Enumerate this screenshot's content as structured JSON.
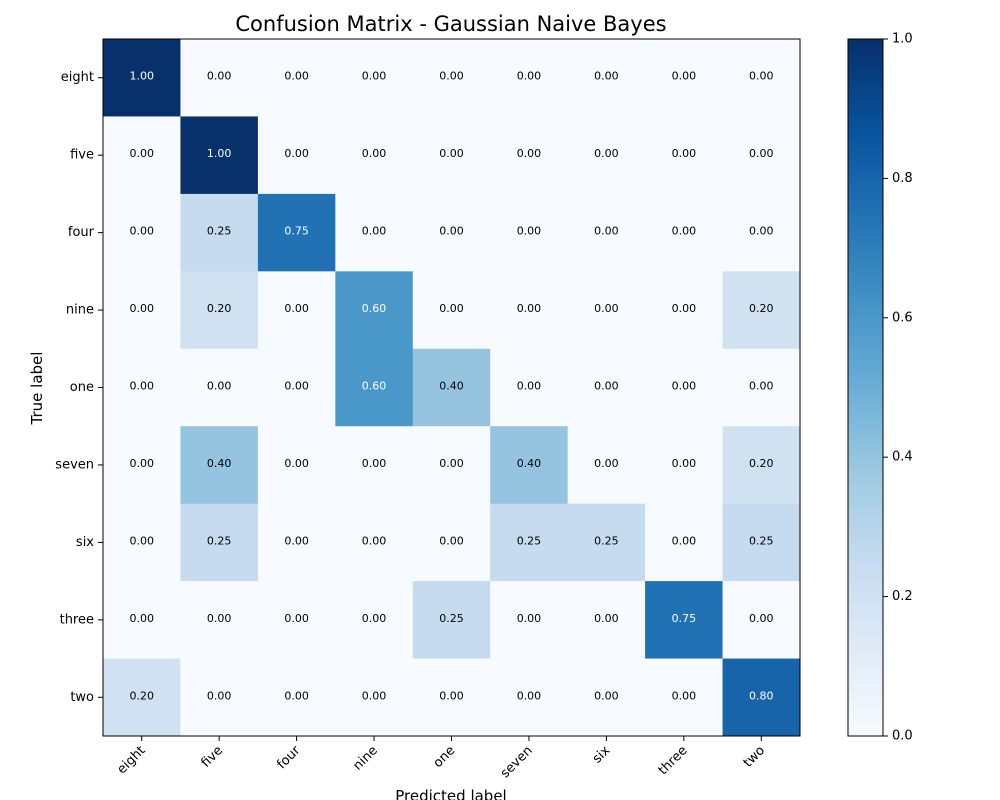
{
  "chart_data": {
    "type": "heatmap",
    "title": "Confusion Matrix - Gaussian Naive Bayes",
    "xlabel": "Predicted label",
    "ylabel": "True label",
    "x_categories": [
      "eight",
      "five",
      "four",
      "nine",
      "one",
      "seven",
      "six",
      "three",
      "two"
    ],
    "y_categories": [
      "eight",
      "five",
      "four",
      "nine",
      "one",
      "seven",
      "six",
      "three",
      "two"
    ],
    "values": [
      [
        1.0,
        0.0,
        0.0,
        0.0,
        0.0,
        0.0,
        0.0,
        0.0,
        0.0
      ],
      [
        0.0,
        1.0,
        0.0,
        0.0,
        0.0,
        0.0,
        0.0,
        0.0,
        0.0
      ],
      [
        0.0,
        0.25,
        0.75,
        0.0,
        0.0,
        0.0,
        0.0,
        0.0,
        0.0
      ],
      [
        0.0,
        0.2,
        0.0,
        0.6,
        0.0,
        0.0,
        0.0,
        0.0,
        0.2
      ],
      [
        0.0,
        0.0,
        0.0,
        0.6,
        0.4,
        0.0,
        0.0,
        0.0,
        0.0
      ],
      [
        0.0,
        0.4,
        0.0,
        0.0,
        0.0,
        0.4,
        0.0,
        0.0,
        0.2
      ],
      [
        0.0,
        0.25,
        0.0,
        0.0,
        0.0,
        0.25,
        0.25,
        0.0,
        0.25
      ],
      [
        0.0,
        0.0,
        0.0,
        0.0,
        0.25,
        0.0,
        0.0,
        0.75,
        0.0
      ],
      [
        0.2,
        0.0,
        0.0,
        0.0,
        0.0,
        0.0,
        0.0,
        0.0,
        0.8
      ]
    ],
    "value_format": "0.00",
    "colormap": "Blues",
    "colorbar": {
      "range": [
        0.0,
        1.0
      ],
      "ticks": [
        "0.0",
        "0.2",
        "0.4",
        "0.6",
        "0.8",
        "1.0"
      ]
    },
    "grid": false
  }
}
